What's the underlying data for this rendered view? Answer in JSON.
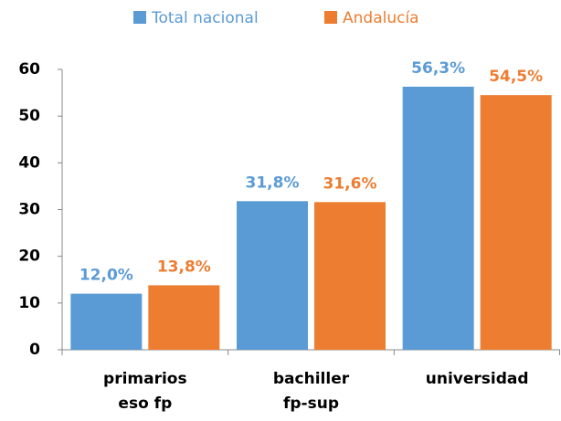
{
  "chart_data": {
    "type": "bar",
    "categories": [
      [
        "primarios",
        "eso fp"
      ],
      [
        "bachiller",
        "fp-sup"
      ],
      [
        "universidad"
      ]
    ],
    "series": [
      {
        "name": "Total nacional",
        "color": "#5b9bd5",
        "values": [
          12.0,
          31.8,
          56.3
        ],
        "value_labels": [
          "12,0%",
          "31,8%",
          "56,3%"
        ]
      },
      {
        "name": "Andalucía",
        "color": "#ed7d31",
        "values": [
          13.8,
          31.6,
          54.5
        ],
        "value_labels": [
          "13,8%",
          "31,6%",
          "54,5%"
        ]
      }
    ],
    "ylim": [
      0,
      60
    ],
    "yticks": [
      0,
      10,
      20,
      30,
      40,
      50,
      60
    ],
    "grid": false,
    "legend": "top"
  }
}
